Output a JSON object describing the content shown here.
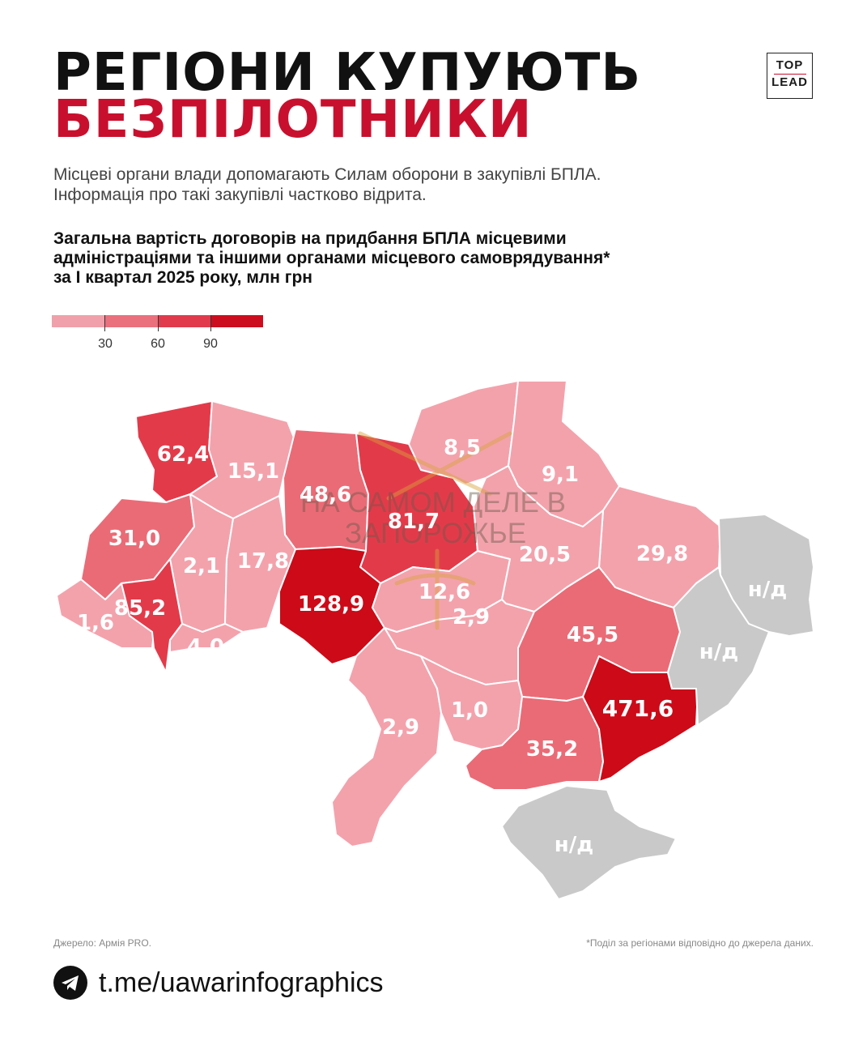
{
  "header": {
    "title_line1": "РЕГІОНИ КУПУЮТЬ",
    "title_line2": "БЕЗПІЛОТНИКИ",
    "logo_top": "TOP",
    "logo_bottom": "LEAD"
  },
  "subtitle": {
    "line1": "Місцеві органи влади допомагають Силам оборони в закупівлі БПЛА.",
    "line2": "Інформація про такі закупівлі частково відрита."
  },
  "description": {
    "line1": "Загальна вартість договорів на придбання БПЛА місцевими",
    "line2": "адміністраціями та іншими органами місцевого самоврядування*",
    "line3": "за I квартал 2025 року, млн грн"
  },
  "legend": {
    "colors": [
      "#f0a0aa",
      "#e9707c",
      "#e03a4c",
      "#cc0d1f"
    ],
    "ticks": [
      "30",
      "60",
      "90"
    ]
  },
  "colors": {
    "bin1": "#f3a2ac",
    "bin2": "#ea6b76",
    "bin3": "#e33a4a",
    "bin4": "#cc0a18",
    "nodata": "#c9c9c9",
    "accent": "#c8102e"
  },
  "regions": [
    {
      "id": "volyn",
      "label": "62,4",
      "bin": 3
    },
    {
      "id": "rivne",
      "label": "15,1",
      "bin": 1
    },
    {
      "id": "zhytomyr",
      "label": "48,6",
      "bin": 2
    },
    {
      "id": "kyiv-oblast",
      "label": "81,7",
      "bin": 3
    },
    {
      "id": "chernihiv",
      "label": "8,5",
      "bin": 1
    },
    {
      "id": "sumy",
      "label": "9,1",
      "bin": 1
    },
    {
      "id": "kharkiv",
      "label": "29,8",
      "bin": 1
    },
    {
      "id": "lviv",
      "label": "31,0",
      "bin": 2
    },
    {
      "id": "ternopil",
      "label": "2,1",
      "bin": 1
    },
    {
      "id": "khmelnytskyi",
      "label": "17,8",
      "bin": 1
    },
    {
      "id": "vinnytsia",
      "label": "128,9",
      "bin": 4
    },
    {
      "id": "cherkasy",
      "label": "12,6",
      "bin": 1
    },
    {
      "id": "poltava",
      "label": "20,5",
      "bin": 1
    },
    {
      "id": "zakarpattia",
      "label": "1,6",
      "bin": 1
    },
    {
      "id": "ivano-frankivsk",
      "label": "85,2",
      "bin": 3
    },
    {
      "id": "chernivtsi",
      "label": "4,0",
      "bin": 1
    },
    {
      "id": "kirovohrad",
      "label": "2,9",
      "bin": 1
    },
    {
      "id": "dnipropetrovsk",
      "label": "45,5",
      "bin": 2
    },
    {
      "id": "odesa",
      "label": "2,9",
      "bin": 1
    },
    {
      "id": "mykolaiv",
      "label": "1,0",
      "bin": 1
    },
    {
      "id": "kherson",
      "label": "35,2",
      "bin": 2
    },
    {
      "id": "zaporizhzhia",
      "label": "471,6",
      "bin": 4
    },
    {
      "id": "luhansk",
      "label": "н/д",
      "bin": 0
    },
    {
      "id": "donetsk",
      "label": "н/д",
      "bin": 0
    },
    {
      "id": "crimea",
      "label": "н/д",
      "bin": 0
    }
  ],
  "watermark": {
    "line1": "НА САМОМ ДЕЛЕ В",
    "line2": "ЗАПОРОЖЬЕ"
  },
  "footer": {
    "source": "Джерело: Армія PRO.",
    "note": "*Поділ за регіонами відповідно до джерела даних.",
    "link": "t.me/uawarinfographics",
    "telegram_icon": "telegram-icon"
  }
}
